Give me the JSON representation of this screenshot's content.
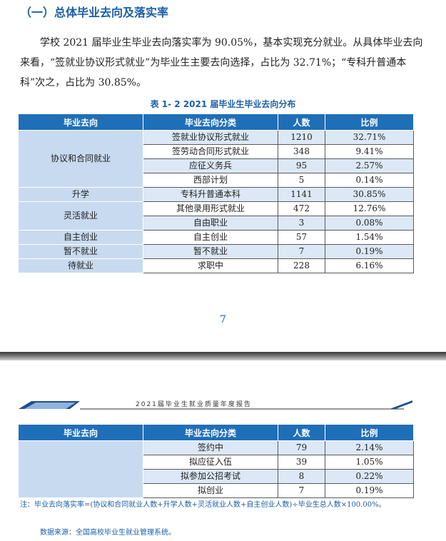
{
  "section_heading": "（一）总体毕业去向及落实率",
  "paragraph": "学校 2021 届毕业生毕业去向落实率为 90.05%，基本实现充分就业。从具体毕业去向来看，“签就业协议形式就业”为毕业生主要去向选择，占比为 32.71%；“专科升普通本科”次之，占比为 30.85%。",
  "table_caption": "表 1- 2    2021 届毕业生毕业去向分布",
  "table_headers": [
    "毕业去向",
    "毕业去向分类",
    "人数",
    "比例"
  ],
  "table_rows": [
    {
      "direction": "协议和合同就业",
      "category": "签就业协议形式就业",
      "count": "1210",
      "ratio": "32.71%"
    },
    {
      "direction": "",
      "category": "签劳动合同形式就业",
      "count": "348",
      "ratio": "9.41%"
    },
    {
      "direction": "",
      "category": "应征义务兵",
      "count": "95",
      "ratio": "2.57%"
    },
    {
      "direction": "",
      "category": "西部计划",
      "count": "5",
      "ratio": "0.14%"
    },
    {
      "direction": "升学",
      "category": "专科升普通本科",
      "count": "1141",
      "ratio": "30.85%"
    },
    {
      "direction": "灵活就业",
      "category": "其他录用形式就业",
      "count": "472",
      "ratio": "12.76%"
    },
    {
      "direction": "",
      "category": "自由职业",
      "count": "3",
      "ratio": "0.08%"
    },
    {
      "direction": "自主创业",
      "category": "自主创业",
      "count": "57",
      "ratio": "1.54%"
    },
    {
      "direction": "暂不就业",
      "category": "暂不就业",
      "count": "7",
      "ratio": "0.19%"
    },
    {
      "direction": "待就业",
      "category": "求职中",
      "count": "228",
      "ratio": "6.16%"
    }
  ],
  "page_number": "7",
  "running_header": "2021届毕业生就业质量年度报告",
  "table2_rows": [
    {
      "category": "签约中",
      "count": "79",
      "ratio": "2.14%"
    },
    {
      "category": "拟应征入伍",
      "count": "39",
      "ratio": "1.05%"
    },
    {
      "category": "拟参加公招考试",
      "count": "8",
      "ratio": "0.22%"
    },
    {
      "category": "拟创业",
      "count": "7",
      "ratio": "0.19%"
    }
  ],
  "note": "注：毕业去向落实率=(协议和合同就业人数+升学人数+灵活就业人数+自主创业人数)÷毕业生总人数×100.00%。",
  "source": "数据来源：全国高校毕业生就业管理系统。",
  "colors": {
    "accent": "#1a5fa8",
    "header_bg": "#1f6fb8",
    "group_bg": "#c8daf0",
    "row_alt": "#dce8f6"
  }
}
